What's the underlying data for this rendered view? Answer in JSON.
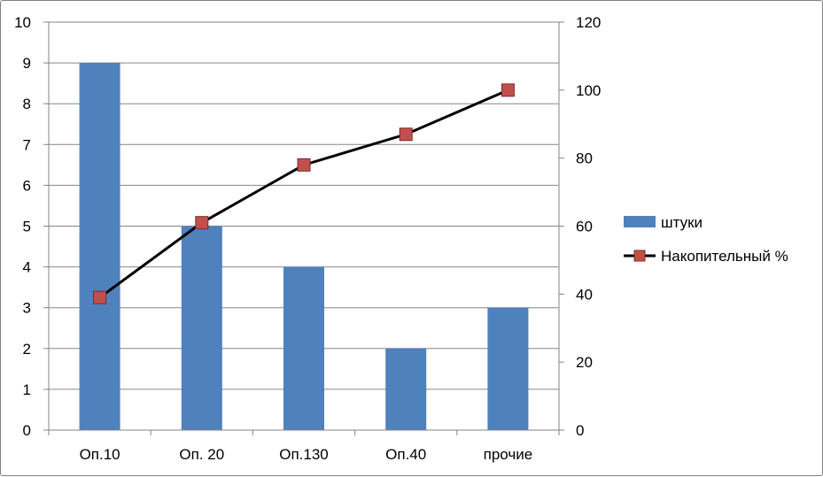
{
  "chart_data": {
    "type": "bar",
    "categories": [
      "Оп.10",
      "Оп. 20",
      "Оп.130",
      "Оп.40",
      "прочие"
    ],
    "series": [
      {
        "name": "штуки",
        "type": "bar",
        "axis": "left",
        "values": [
          9,
          5,
          4,
          2,
          3
        ],
        "color": "#4f81bd"
      },
      {
        "name": "Накопительный %",
        "type": "line",
        "axis": "right",
        "values": [
          39,
          61,
          78,
          87,
          100
        ],
        "color": "#000000",
        "marker_color": "#c0504d"
      }
    ],
    "y_left": {
      "min": 0,
      "max": 10,
      "step": 1,
      "ticks": [
        "0",
        "1",
        "2",
        "3",
        "4",
        "5",
        "6",
        "7",
        "8",
        "9",
        "10"
      ]
    },
    "y_right": {
      "min": 0,
      "max": 120,
      "step": 20,
      "ticks": [
        "0",
        "20",
        "40",
        "60",
        "80",
        "100",
        "120"
      ]
    },
    "grid": true,
    "legend_position": "right"
  }
}
